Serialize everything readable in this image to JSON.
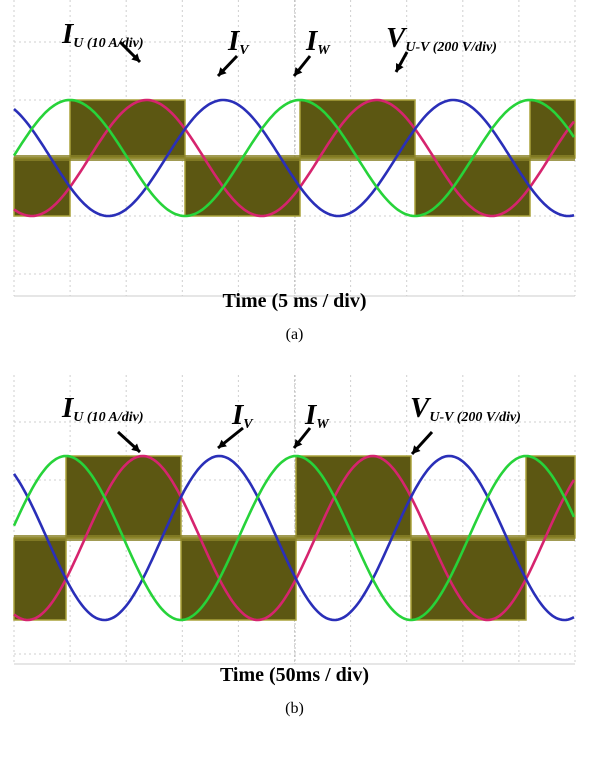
{
  "panels": [
    {
      "labels": [
        {
          "main": "I",
          "sub": "U (10 A/div)"
        },
        {
          "main": "I",
          "sub": "V"
        },
        {
          "main": "I",
          "sub": "W"
        },
        {
          "main": "V",
          "sub": "U-V (200 V/div)"
        }
      ],
      "x_label": "Time (5 ms / div)",
      "caption": "(a)"
    },
    {
      "labels": [
        {
          "main": "I",
          "sub": "U (10 A/div)"
        },
        {
          "main": "I",
          "sub": "V"
        },
        {
          "main": "I",
          "sub": "W"
        },
        {
          "main": "V",
          "sub": "U-V (200 V/div)"
        }
      ],
      "x_label": "Time (50ms / div)",
      "caption": "(b)"
    }
  ]
}
